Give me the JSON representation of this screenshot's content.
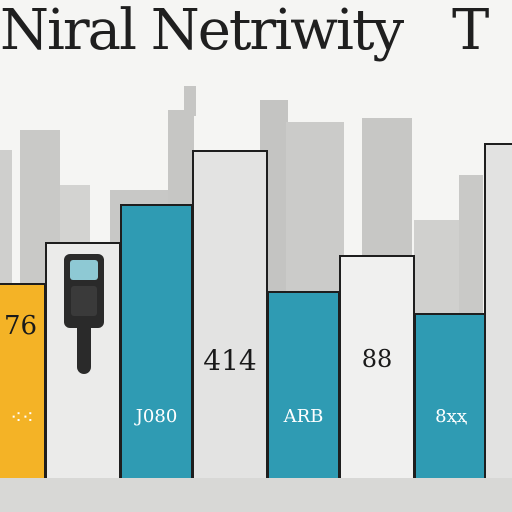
{
  "title": {
    "left": "Niral Netriwity",
    "right": "T"
  },
  "bars": [
    {
      "id": "bar-1",
      "label_top": "76",
      "label_bottom": "⁖⁖",
      "color": "#f4b326"
    },
    {
      "id": "bar-2",
      "label_top": "",
      "label_bottom": "",
      "color": "#ebebea"
    },
    {
      "id": "bar-3",
      "label_top": "",
      "label_bottom": "Ј080",
      "color": "#2f9bb3"
    },
    {
      "id": "bar-4",
      "label_top": "414",
      "label_bottom": "",
      "color": "#e3e3e2"
    },
    {
      "id": "bar-5",
      "label_top": "",
      "label_bottom": "ARB",
      "color": "#2f9bb3"
    },
    {
      "id": "bar-6",
      "label_top": "88",
      "label_bottom": "",
      "color": "#f0f0ef"
    },
    {
      "id": "bar-7",
      "label_top": "",
      "label_bottom": "8ҳҳ",
      "color": "#2f9bb3"
    },
    {
      "id": "bar-8",
      "label_top": "",
      "label_bottom": "",
      "color": "#e2e2e1"
    }
  ],
  "colors": {
    "skyline": "#cfcfcd",
    "skyline_dark": "#bdbdbb",
    "background": "#f5f5f3"
  },
  "icons": {
    "device": "handheld-meter-icon"
  }
}
